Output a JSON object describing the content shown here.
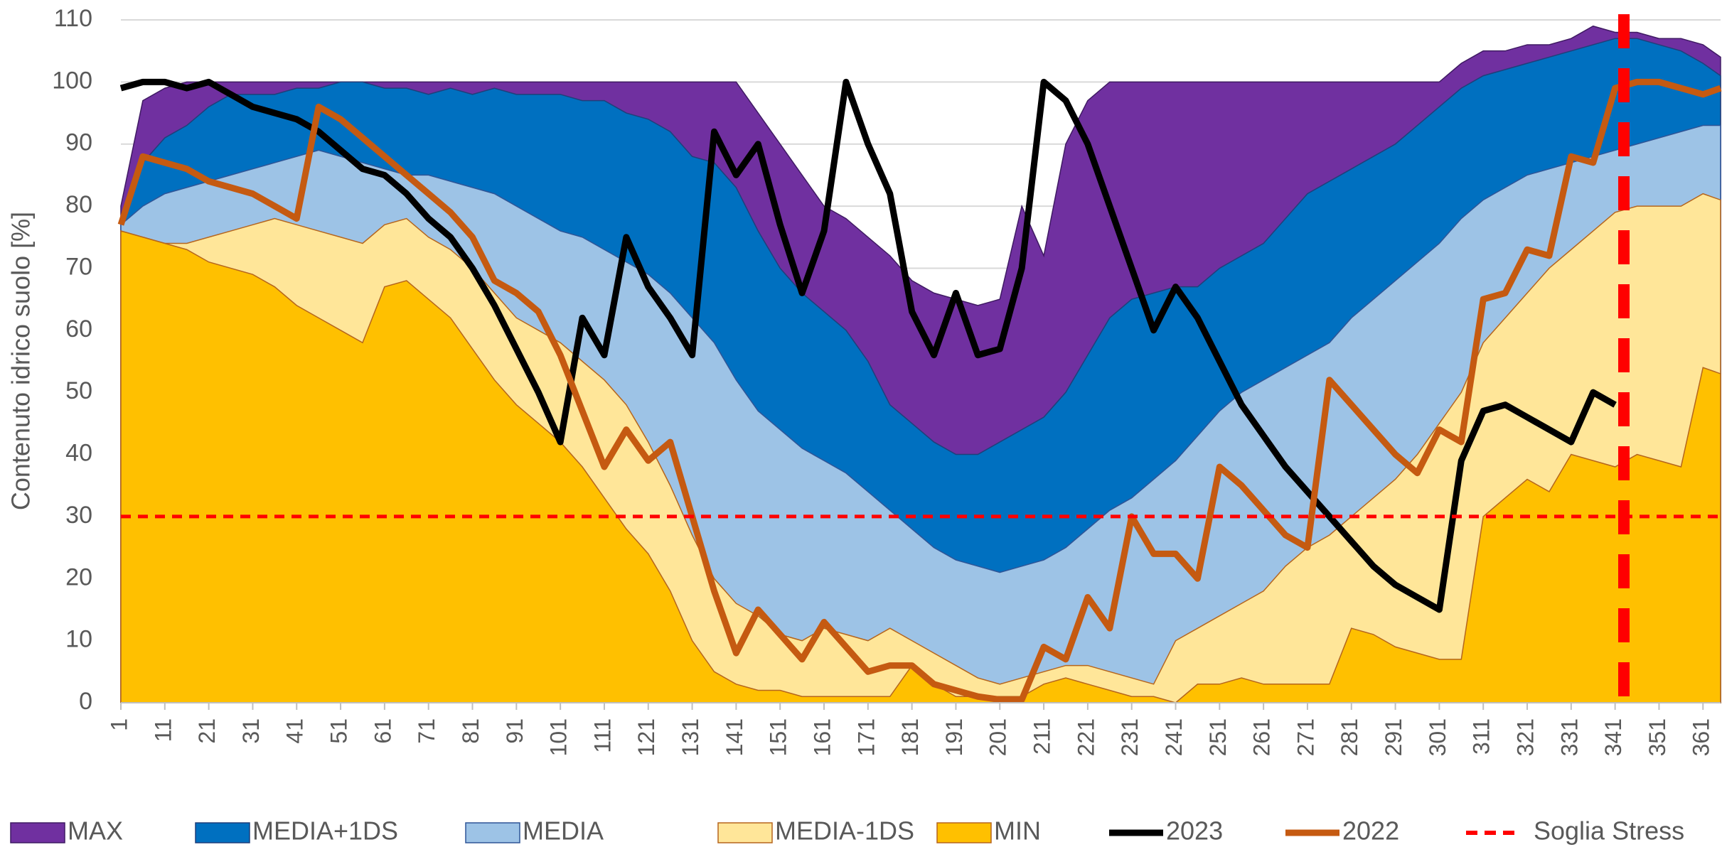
{
  "chart_data": {
    "type": "area",
    "y_label": "Contenuto idrico suolo [%]",
    "x": [
      1,
      6,
      11,
      16,
      21,
      26,
      31,
      36,
      41,
      46,
      51,
      56,
      61,
      66,
      71,
      76,
      81,
      86,
      91,
      96,
      101,
      106,
      111,
      116,
      121,
      126,
      131,
      136,
      141,
      146,
      151,
      156,
      161,
      166,
      171,
      176,
      181,
      186,
      191,
      196,
      201,
      206,
      211,
      216,
      221,
      226,
      231,
      236,
      241,
      246,
      251,
      256,
      261,
      266,
      271,
      276,
      281,
      286,
      291,
      296,
      301,
      306,
      311,
      316,
      321,
      326,
      331,
      336,
      341,
      346,
      351,
      356,
      361,
      365
    ],
    "xlim": [
      1,
      365
    ],
    "xticks": [
      1,
      11,
      21,
      31,
      41,
      51,
      61,
      71,
      81,
      91,
      101,
      111,
      121,
      131,
      141,
      151,
      161,
      171,
      181,
      191,
      201,
      211,
      221,
      231,
      241,
      251,
      261,
      271,
      281,
      291,
      301,
      311,
      321,
      331,
      341,
      351,
      361
    ],
    "ylim": [
      0,
      110
    ],
    "yticks": [
      0,
      10,
      20,
      30,
      40,
      50,
      60,
      70,
      80,
      90,
      100,
      110
    ],
    "grid": true,
    "legend": "bottom",
    "series": [
      {
        "name": "MAX",
        "kind": "area",
        "color": "#7030a0",
        "values": [
          80,
          97,
          99,
          100,
          100,
          100,
          100,
          100,
          100,
          100,
          100,
          100,
          100,
          100,
          100,
          100,
          100,
          100,
          100,
          100,
          100,
          100,
          100,
          100,
          100,
          100,
          100,
          100,
          100,
          95,
          90,
          85,
          80,
          78,
          75,
          72,
          68,
          66,
          65,
          64,
          65,
          80,
          72,
          90,
          97,
          100,
          100,
          100,
          100,
          100,
          100,
          100,
          100,
          100,
          100,
          100,
          100,
          100,
          100,
          100,
          100,
          103,
          105,
          105,
          106,
          106,
          107,
          109,
          108,
          108,
          107,
          107,
          106,
          104
        ]
      },
      {
        "name": "MEDIA+1DS",
        "kind": "area",
        "color": "#0070c0",
        "values": [
          77,
          87,
          91,
          93,
          96,
          98,
          98,
          98,
          99,
          99,
          100,
          100,
          99,
          99,
          98,
          99,
          98,
          99,
          98,
          98,
          98,
          97,
          97,
          95,
          94,
          92,
          88,
          87,
          83,
          76,
          70,
          66,
          63,
          60,
          55,
          48,
          45,
          42,
          40,
          40,
          42,
          44,
          46,
          50,
          56,
          62,
          65,
          66,
          67,
          67,
          70,
          72,
          74,
          78,
          82,
          84,
          86,
          88,
          90,
          93,
          96,
          99,
          101,
          102,
          103,
          104,
          105,
          106,
          107,
          107,
          106,
          105,
          103,
          101
        ]
      },
      {
        "name": "MEDIA",
        "kind": "area",
        "color": "#9dc3e6",
        "values": [
          77,
          80,
          82,
          83,
          84,
          85,
          86,
          87,
          88,
          89,
          88,
          87,
          86,
          85,
          85,
          84,
          83,
          82,
          80,
          78,
          76,
          75,
          73,
          71,
          69,
          66,
          62,
          58,
          52,
          47,
          44,
          41,
          39,
          37,
          34,
          31,
          28,
          25,
          23,
          22,
          21,
          22,
          23,
          25,
          28,
          31,
          33,
          36,
          39,
          43,
          47,
          50,
          52,
          54,
          56,
          58,
          62,
          65,
          68,
          71,
          74,
          78,
          81,
          83,
          85,
          86,
          87,
          88,
          89,
          90,
          91,
          92,
          93,
          93
        ]
      },
      {
        "name": "MEDIA-1DS",
        "kind": "area",
        "color": "#ffe699",
        "values": [
          76,
          75,
          74,
          74,
          75,
          76,
          77,
          78,
          77,
          76,
          75,
          74,
          77,
          78,
          75,
          73,
          70,
          66,
          62,
          60,
          58,
          55,
          52,
          48,
          42,
          35,
          27,
          20,
          16,
          14,
          11,
          10,
          12,
          11,
          10,
          12,
          10,
          8,
          6,
          4,
          3,
          4,
          5,
          6,
          6,
          5,
          4,
          3,
          10,
          12,
          14,
          16,
          18,
          22,
          25,
          27,
          30,
          33,
          36,
          40,
          45,
          50,
          58,
          62,
          66,
          70,
          73,
          76,
          79,
          80,
          80,
          80,
          82,
          81
        ]
      },
      {
        "name": "MIN",
        "kind": "area",
        "color": "#ffc000",
        "values": [
          76,
          75,
          74,
          73,
          71,
          70,
          69,
          67,
          64,
          62,
          60,
          58,
          67,
          68,
          65,
          62,
          57,
          52,
          48,
          45,
          42,
          38,
          33,
          28,
          24,
          18,
          10,
          5,
          3,
          2,
          2,
          1,
          1,
          1,
          1,
          1,
          6,
          3,
          1,
          1,
          1,
          1,
          3,
          4,
          3,
          2,
          1,
          1,
          0,
          3,
          3,
          4,
          3,
          3,
          3,
          3,
          12,
          11,
          9,
          8,
          7,
          7,
          30,
          33,
          36,
          34,
          40,
          39,
          38,
          40,
          39,
          38,
          54,
          53
        ]
      },
      {
        "name": "2023",
        "kind": "line",
        "color": "#000000",
        "values": [
          99,
          100,
          100,
          99,
          100,
          98,
          96,
          95,
          94,
          92,
          89,
          86,
          85,
          82,
          78,
          75,
          70,
          64,
          57,
          50,
          42,
          62,
          56,
          75,
          67,
          62,
          56,
          92,
          85,
          90,
          77,
          66,
          76,
          100,
          90,
          82,
          63,
          56,
          66,
          56,
          57,
          70,
          100,
          97,
          90,
          80,
          70,
          60,
          67,
          62,
          55,
          48,
          43,
          38,
          34,
          30,
          26,
          22,
          19,
          17,
          15,
          39,
          47,
          48,
          46,
          44,
          42,
          50,
          48,
          null,
          null,
          null,
          null,
          null
        ]
      },
      {
        "name": "2022",
        "kind": "line",
        "color": "#c55a11",
        "values": [
          77,
          88,
          87,
          86,
          84,
          83,
          82,
          80,
          78,
          96,
          94,
          91,
          88,
          85,
          82,
          79,
          75,
          68,
          66,
          63,
          56,
          47,
          38,
          44,
          39,
          42,
          30,
          18,
          8,
          15,
          11,
          7,
          13,
          9,
          5,
          6,
          6,
          3,
          2,
          1,
          0.5,
          0.5,
          9,
          7,
          17,
          12,
          30,
          24,
          24,
          20,
          38,
          35,
          31,
          27,
          25,
          52,
          48,
          44,
          40,
          37,
          44,
          42,
          65,
          66,
          73,
          72,
          88,
          87,
          99,
          100,
          100,
          99,
          98,
          99
        ]
      }
    ],
    "threshold": {
      "name": "Soglia Stress",
      "value": 30,
      "color": "#ff0000"
    },
    "marker": {
      "x": 343,
      "color": "#ff0000"
    }
  }
}
